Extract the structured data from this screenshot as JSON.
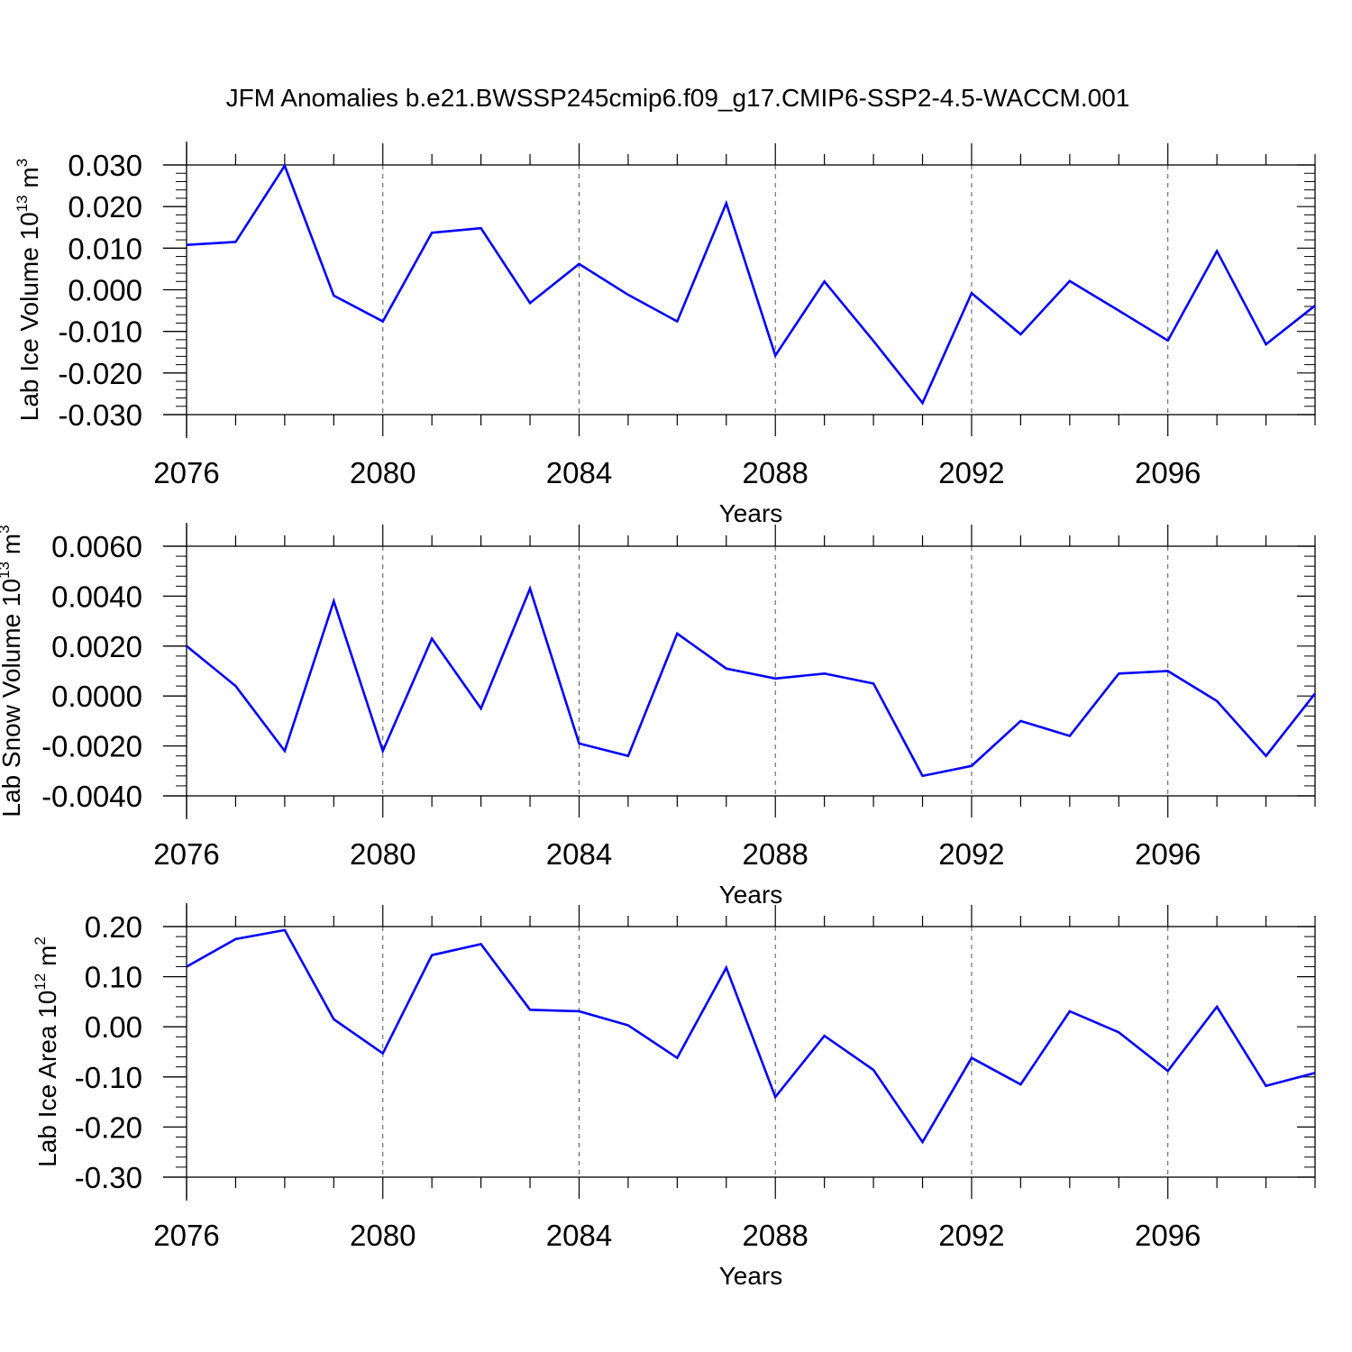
{
  "figure_title": "JFM Anomalies b.e21.BWSSP245cmip6.f09_g17.CMIP6-SSP2-4.5-WACCM.001",
  "chart_data": [
    {
      "type": "line",
      "title": "JFM Anomalies b.e21.BWSSP245cmip6.f09_g17.CMIP6-SSP2-4.5-WACCM.001",
      "ylabel_main": "Lab Ice Volume 10",
      "ylabel_exp1": "13",
      "ylabel_unit": " m",
      "ylabel_exp2": "3",
      "xlabel": "Years",
      "x": [
        2076,
        2077,
        2078,
        2079,
        2080,
        2081,
        2082,
        2083,
        2084,
        2085,
        2086,
        2087,
        2088,
        2089,
        2090,
        2091,
        2092,
        2093,
        2094,
        2095,
        2096,
        2097,
        2098,
        2099
      ],
      "series": [
        {
          "color": "#0000ff",
          "values": [
            0.0108,
            0.0115,
            0.0298,
            -0.0014,
            -0.0076,
            0.0137,
            0.0148,
            -0.0032,
            0.0062,
            -0.0012,
            -0.0076,
            0.0208,
            -0.0158,
            0.002,
            -0.0123,
            -0.0272,
            -0.0008,
            -0.0107,
            0.0021,
            -0.005,
            -0.0122,
            0.0093,
            -0.0131,
            -0.0038
          ]
        }
      ],
      "xlim": [
        2076,
        2099
      ],
      "ylim": [
        -0.03,
        0.03
      ],
      "x_ticks": [
        2076,
        2080,
        2084,
        2088,
        2092,
        2096
      ],
      "x_tick_labels": [
        "2076",
        "2080",
        "2084",
        "2088",
        "2092",
        "2096"
      ],
      "y_ticks": [
        -0.03,
        -0.02,
        -0.01,
        0.0,
        0.01,
        0.02,
        0.03
      ],
      "y_tick_labels": [
        "-0.030",
        "-0.020",
        "-0.010",
        "0.000",
        "0.010",
        "0.020",
        "0.030"
      ],
      "grid": "vertical dashed at major x ticks"
    },
    {
      "type": "line",
      "ylabel_main": "Lab Snow Volume 10",
      "ylabel_exp1": "13",
      "ylabel_unit": " m",
      "ylabel_exp2": "3",
      "xlabel": "Years",
      "x": [
        2076,
        2077,
        2078,
        2079,
        2080,
        2081,
        2082,
        2083,
        2084,
        2085,
        2086,
        2087,
        2088,
        2089,
        2090,
        2091,
        2092,
        2093,
        2094,
        2095,
        2096,
        2097,
        2098,
        2099
      ],
      "series": [
        {
          "color": "#0000ff",
          "values": [
            0.002,
            0.0004,
            -0.0022,
            0.0038,
            -0.0022,
            0.0023,
            -0.0005,
            0.0043,
            -0.0019,
            -0.0024,
            0.0025,
            0.0011,
            0.0007,
            0.0009,
            0.0005,
            -0.0032,
            -0.0028,
            -0.001,
            -0.0016,
            0.0009,
            0.001,
            -0.0002,
            -0.0024,
            0.0001
          ]
        }
      ],
      "xlim": [
        2076,
        2099
      ],
      "ylim": [
        -0.004,
        0.006
      ],
      "x_ticks": [
        2076,
        2080,
        2084,
        2088,
        2092,
        2096
      ],
      "x_tick_labels": [
        "2076",
        "2080",
        "2084",
        "2088",
        "2092",
        "2096"
      ],
      "y_ticks": [
        -0.004,
        -0.002,
        0.0,
        0.002,
        0.004,
        0.006
      ],
      "y_tick_labels": [
        "-0.0040",
        "-0.0020",
        "0.0000",
        "0.0020",
        "0.0040",
        "0.0060"
      ],
      "grid": "vertical dashed at major x ticks"
    },
    {
      "type": "line",
      "ylabel_main": "Lab Ice Area 10",
      "ylabel_exp1": "12",
      "ylabel_unit": " m",
      "ylabel_exp2": "2",
      "xlabel": "Years",
      "x": [
        2076,
        2077,
        2078,
        2079,
        2080,
        2081,
        2082,
        2083,
        2084,
        2085,
        2086,
        2087,
        2088,
        2089,
        2090,
        2091,
        2092,
        2093,
        2094,
        2095,
        2096,
        2097,
        2098,
        2099
      ],
      "series": [
        {
          "color": "#0000ff",
          "values": [
            0.12,
            0.175,
            0.193,
            0.015,
            -0.053,
            0.143,
            0.165,
            0.034,
            0.031,
            0.003,
            -0.062,
            0.118,
            -0.14,
            -0.018,
            -0.086,
            -0.23,
            -0.062,
            -0.115,
            0.031,
            -0.011,
            -0.088,
            0.04,
            -0.118,
            -0.092
          ]
        }
      ],
      "xlim": [
        2076,
        2099
      ],
      "ylim": [
        -0.3,
        0.2
      ],
      "x_ticks": [
        2076,
        2080,
        2084,
        2088,
        2092,
        2096
      ],
      "x_tick_labels": [
        "2076",
        "2080",
        "2084",
        "2088",
        "2092",
        "2096"
      ],
      "y_ticks": [
        -0.3,
        -0.2,
        -0.1,
        0.0,
        0.1,
        0.2
      ],
      "y_tick_labels": [
        "-0.30",
        "-0.20",
        "-0.10",
        "0.00",
        "0.10",
        "0.20"
      ],
      "grid": "vertical dashed at major x ticks"
    }
  ]
}
